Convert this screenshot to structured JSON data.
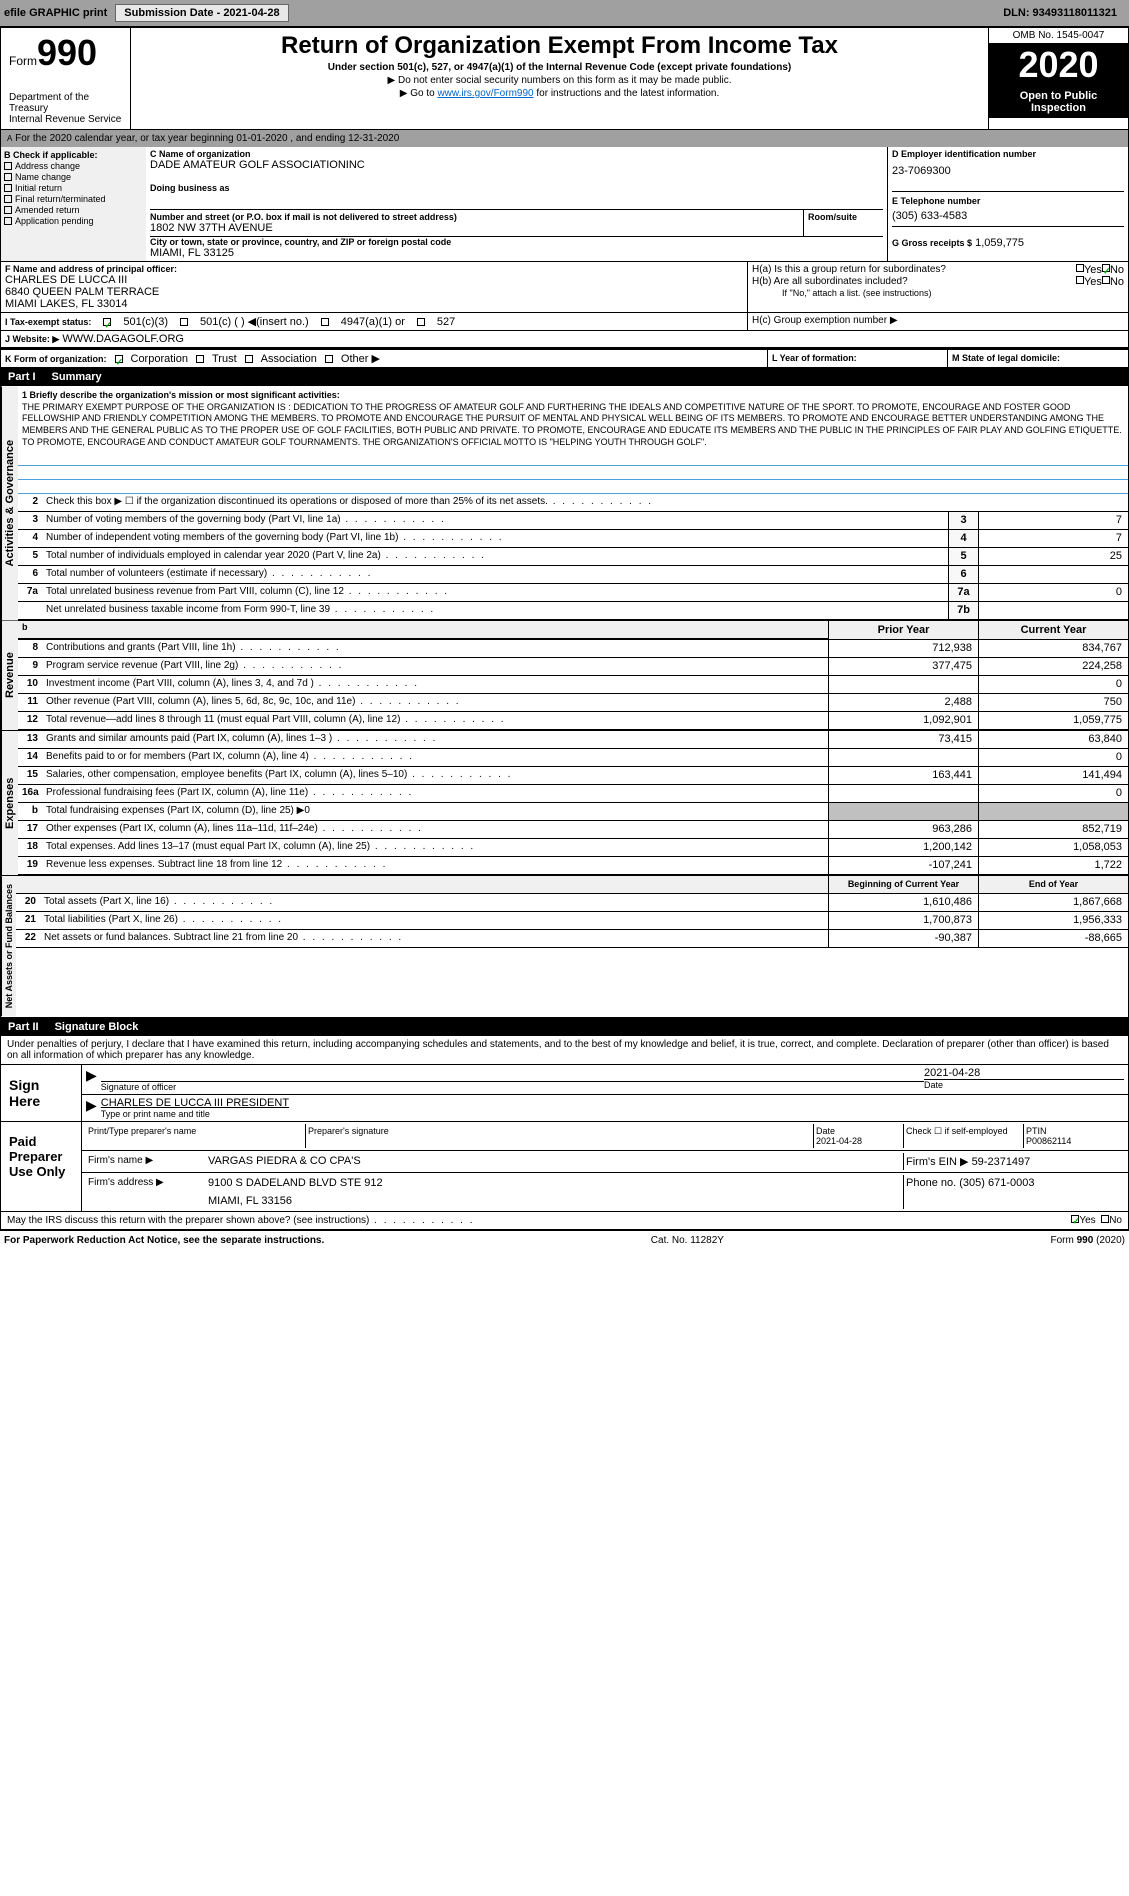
{
  "top": {
    "efile": "efile GRAPHIC print",
    "subdate_label": "Submission Date - 2021-04-28",
    "dln": "DLN: 93493118011321"
  },
  "header": {
    "form_label": "Form",
    "form_num": "990",
    "title": "Return of Organization Exempt From Income Tax",
    "subtitle": "Under section 501(c), 527, or 4947(a)(1) of the Internal Revenue Code (except private foundations)",
    "note1": "▶ Do not enter social security numbers on this form as it may be made public.",
    "note2": "▶ Go to www.irs.gov/Form990 for instructions and the latest information.",
    "dept": "Department of the Treasury\nInternal Revenue Service",
    "omb": "OMB No. 1545-0047",
    "year": "2020",
    "inspection": "Open to Public Inspection"
  },
  "taxyear": "For the 2020 calendar year, or tax year beginning 01-01-2020   , and ending 12-31-2020",
  "checkB": {
    "header": "B Check if applicable:",
    "items": [
      "Address change",
      "Name change",
      "Initial return",
      "Final return/terminated",
      "Amended return",
      "Application pending"
    ]
  },
  "org": {
    "c_label": "C Name of organization",
    "name": "DADE AMATEUR GOLF ASSOCIATIONINC",
    "dba_label": "Doing business as",
    "addr_label": "Number and street (or P.O. box if mail is not delivered to street address)",
    "room_label": "Room/suite",
    "address": "1802 NW 37TH AVENUE",
    "city_label": "City or town, state or province, country, and ZIP or foreign postal code",
    "city": "MIAMI, FL  33125"
  },
  "d": {
    "label": "D Employer identification number",
    "value": "23-7069300"
  },
  "e": {
    "label": "E Telephone number",
    "value": "(305) 633-4583"
  },
  "g": {
    "label": "G Gross receipts $",
    "value": "1,059,775"
  },
  "f": {
    "label": "F  Name and address of principal officer:",
    "name": "CHARLES DE LUCCA III",
    "addr": "6840 QUEEN PALM TERRACE",
    "city": "MIAMI LAKES, FL  33014"
  },
  "h": {
    "a": "H(a)  Is this a group return for subordinates?",
    "b": "H(b)  Are all subordinates included?",
    "b_note": "If \"No,\" attach a list. (see instructions)",
    "c": "H(c)  Group exemption number ▶",
    "yes": "Yes",
    "no": "No"
  },
  "i": {
    "label": "I   Tax-exempt status:",
    "opts": [
      "501(c)(3)",
      "501(c) (  ) ◀(insert no.)",
      "4947(a)(1) or",
      "527"
    ]
  },
  "j": {
    "label": "J   Website: ▶",
    "value": "WWW.DAGAGOLF.ORG"
  },
  "k": {
    "label": "K Form of organization:",
    "opts": [
      "Corporation",
      "Trust",
      "Association",
      "Other ▶"
    ]
  },
  "l": "L  Year of formation:",
  "m": "M State of legal domicile:",
  "part1": {
    "label": "Part I",
    "title": "Summary"
  },
  "mission": {
    "label": "1  Briefly describe the organization's mission or most significant activities:",
    "text": "THE PRIMARY EXEMPT PURPOSE OF THE ORGANIZATION IS : DEDICATION TO THE PROGRESS OF AMATEUR GOLF AND FURTHERING THE IDEALS AND COMPETITIVE NATURE OF THE SPORT. TO PROMOTE, ENCOURAGE AND FOSTER GOOD FELLOWSHIP AND FRIENDLY COMPETITION AMONG THE MEMBERS. TO PROMOTE AND ENCOURAGE THE PURSUIT OF MENTAL AND PHYSICAL WELL BEING OF ITS MEMBERS. TO PROMOTE AND ENCOURAGE BETTER UNDERSTANDING AMONG THE MEMBERS AND THE GENERAL PUBLIC AS TO THE PROPER USE OF GOLF FACILITIES, BOTH PUBLIC AND PRIVATE. TO PROMOTE, ENCOURAGE AND EDUCATE ITS MEMBERS AND THE PUBLIC IN THE PRINCIPLES OF FAIR PLAY AND GOLFING ETIQUETTE. TO PROMOTE, ENCOURAGE AND CONDUCT AMATEUR GOLF TOURNAMENTS. THE ORGANIZATION'S OFFICIAL MOTTO IS \"HELPING YOUTH THROUGH GOLF\"."
  },
  "governance": {
    "vert": "Activities & Governance",
    "lines": [
      {
        "n": "2",
        "t": "Check this box ▶ ☐ if the organization discontinued its operations or disposed of more than 25% of its net assets."
      },
      {
        "n": "3",
        "t": "Number of voting members of the governing body (Part VI, line 1a)",
        "box": "3",
        "v": "7"
      },
      {
        "n": "4",
        "t": "Number of independent voting members of the governing body (Part VI, line 1b)",
        "box": "4",
        "v": "7"
      },
      {
        "n": "5",
        "t": "Total number of individuals employed in calendar year 2020 (Part V, line 2a)",
        "box": "5",
        "v": "25"
      },
      {
        "n": "6",
        "t": "Total number of volunteers (estimate if necessary)",
        "box": "6",
        "v": ""
      },
      {
        "n": "7a",
        "t": "Total unrelated business revenue from Part VIII, column (C), line 12",
        "box": "7a",
        "v": "0"
      },
      {
        "n": "",
        "t": "Net unrelated business taxable income from Form 990-T, line 39",
        "box": "7b",
        "v": ""
      }
    ]
  },
  "columns": {
    "prior": "Prior Year",
    "current": "Current Year"
  },
  "revenue": {
    "vert": "Revenue",
    "lines": [
      {
        "n": "8",
        "t": "Contributions and grants (Part VIII, line 1h)",
        "p": "712,938",
        "c": "834,767"
      },
      {
        "n": "9",
        "t": "Program service revenue (Part VIII, line 2g)",
        "p": "377,475",
        "c": "224,258"
      },
      {
        "n": "10",
        "t": "Investment income (Part VIII, column (A), lines 3, 4, and 7d )",
        "p": "",
        "c": "0"
      },
      {
        "n": "11",
        "t": "Other revenue (Part VIII, column (A), lines 5, 6d, 8c, 9c, 10c, and 11e)",
        "p": "2,488",
        "c": "750"
      },
      {
        "n": "12",
        "t": "Total revenue—add lines 8 through 11 (must equal Part VIII, column (A), line 12)",
        "p": "1,092,901",
        "c": "1,059,775"
      }
    ]
  },
  "expenses": {
    "vert": "Expenses",
    "lines": [
      {
        "n": "13",
        "t": "Grants and similar amounts paid (Part IX, column (A), lines 1–3 )",
        "p": "73,415",
        "c": "63,840"
      },
      {
        "n": "14",
        "t": "Benefits paid to or for members (Part IX, column (A), line 4)",
        "p": "",
        "c": "0"
      },
      {
        "n": "15",
        "t": "Salaries, other compensation, employee benefits (Part IX, column (A), lines 5–10)",
        "p": "163,441",
        "c": "141,494"
      },
      {
        "n": "16a",
        "t": "Professional fundraising fees (Part IX, column (A), line 11e)",
        "p": "",
        "c": "0"
      },
      {
        "n": "b",
        "t": "Total fundraising expenses (Part IX, column (D), line 25) ▶0",
        "shaded": true
      },
      {
        "n": "17",
        "t": "Other expenses (Part IX, column (A), lines 11a–11d, 11f–24e)",
        "p": "963,286",
        "c": "852,719"
      },
      {
        "n": "18",
        "t": "Total expenses. Add lines 13–17 (must equal Part IX, column (A), line 25)",
        "p": "1,200,142",
        "c": "1,058,053"
      },
      {
        "n": "19",
        "t": "Revenue less expenses. Subtract line 18 from line 12",
        "p": "-107,241",
        "c": "1,722"
      }
    ]
  },
  "netassets": {
    "vert": "Net Assets or Fund Balances",
    "col1": "Beginning of Current Year",
    "col2": "End of Year",
    "lines": [
      {
        "n": "20",
        "t": "Total assets (Part X, line 16)",
        "p": "1,610,486",
        "c": "1,867,668"
      },
      {
        "n": "21",
        "t": "Total liabilities (Part X, line 26)",
        "p": "1,700,873",
        "c": "1,956,333"
      },
      {
        "n": "22",
        "t": "Net assets or fund balances. Subtract line 21 from line 20",
        "p": "-90,387",
        "c": "-88,665"
      }
    ]
  },
  "part2": {
    "label": "Part II",
    "title": "Signature Block"
  },
  "sig": {
    "penalty": "Under penalties of perjury, I declare that I have examined this return, including accompanying schedules and statements, and to the best of my knowledge and belief, it is true, correct, and complete. Declaration of preparer (other than officer) is based on all information of which preparer has any knowledge.",
    "sign_here": "Sign Here",
    "sig_officer": "Signature of officer",
    "date": "Date",
    "date_val": "2021-04-28",
    "officer_name": "CHARLES DE LUCCA III  PRESIDENT",
    "type_name": "Type or print name and title",
    "paid": "Paid Preparer Use Only",
    "prep_name_label": "Print/Type preparer's name",
    "prep_sig_label": "Preparer's signature",
    "prep_date": "2021-04-28",
    "check_self": "Check ☐ if self-employed",
    "ptin_label": "PTIN",
    "ptin": "P00862114",
    "firm_name_label": "Firm's name    ▶",
    "firm_name": "VARGAS PIEDRA & CO CPA'S",
    "firm_ein_label": "Firm's EIN ▶",
    "firm_ein": "59-2371497",
    "firm_addr_label": "Firm's address ▶",
    "firm_addr": "9100 S DADELAND BLVD STE 912",
    "firm_city": "MIAMI, FL  33156",
    "phone_label": "Phone no.",
    "phone": "(305) 671-0003"
  },
  "footer": {
    "discuss": "May the IRS discuss this return with the preparer shown above? (see instructions)",
    "yes": "Yes",
    "no": "No",
    "paperwork": "For Paperwork Reduction Act Notice, see the separate instructions.",
    "cat": "Cat. No. 11282Y",
    "form": "Form 990 (2020)"
  }
}
